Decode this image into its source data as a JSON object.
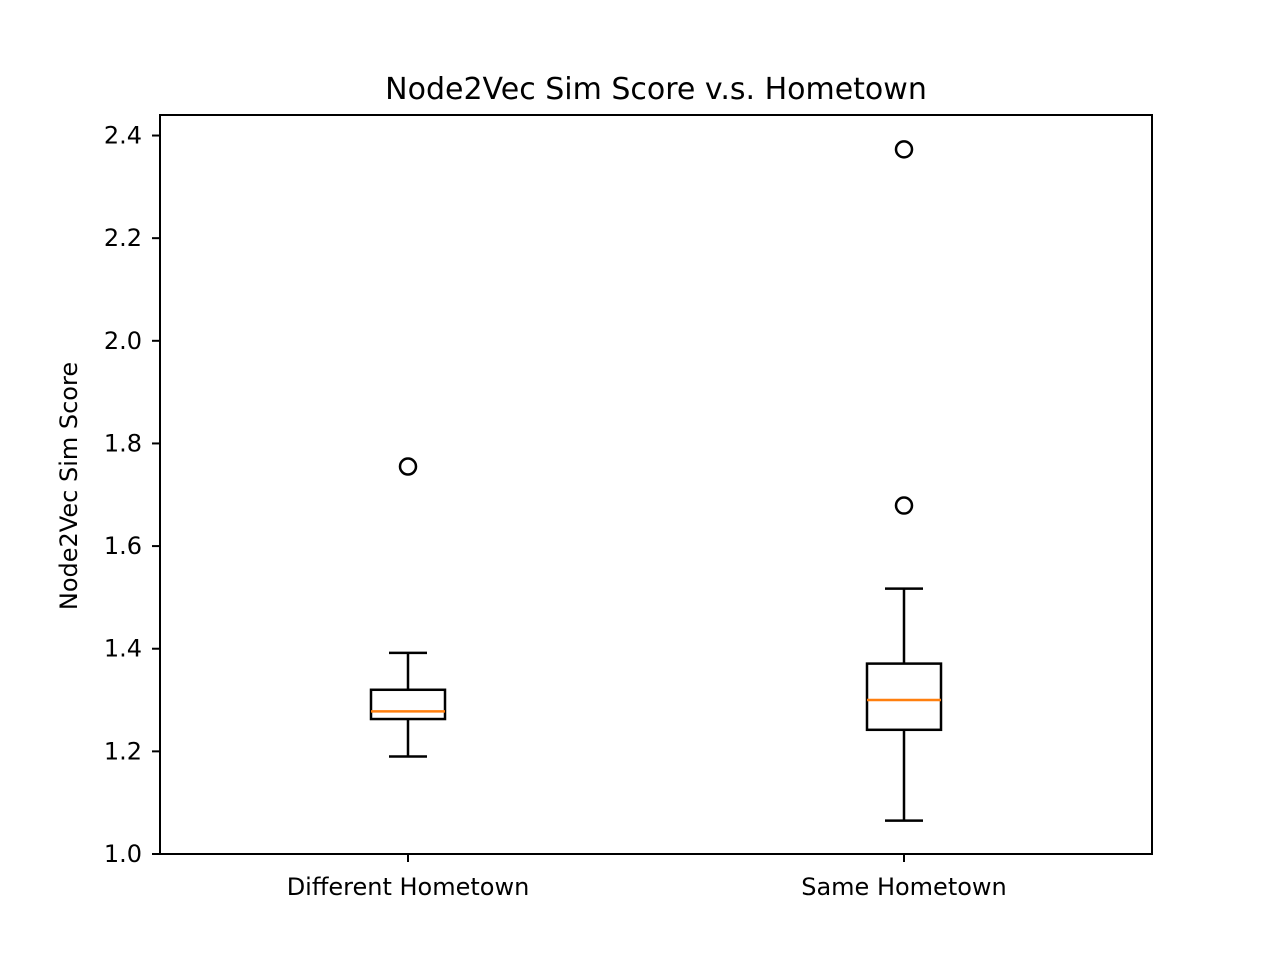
{
  "chart_data": {
    "type": "box",
    "title": "Node2Vec Sim Score v.s. Hometown",
    "xlabel": "",
    "ylabel": "Node2Vec Sim Score",
    "ylim": [
      1.0,
      2.44
    ],
    "yticks": [
      1.0,
      1.2,
      1.4,
      1.6,
      1.8,
      2.0,
      2.2,
      2.4
    ],
    "ytick_labels": [
      "1.0",
      "1.2",
      "1.4",
      "1.6",
      "1.8",
      "2.0",
      "2.2",
      "2.4"
    ],
    "grid": false,
    "categories": [
      "Different Hometown",
      "Same Hometown"
    ],
    "boxes": [
      {
        "category": "Different Hometown",
        "whisker_low": 1.19,
        "q1": 1.263,
        "median": 1.278,
        "q3": 1.32,
        "whisker_high": 1.392,
        "outliers": [
          1.755
        ]
      },
      {
        "category": "Same Hometown",
        "whisker_low": 1.065,
        "q1": 1.242,
        "median": 1.3,
        "q3": 1.371,
        "whisker_high": 1.517,
        "outliers": [
          1.679,
          2.373
        ]
      }
    ],
    "colors": {
      "median": "#ff7f0e",
      "box": "#000000"
    }
  }
}
